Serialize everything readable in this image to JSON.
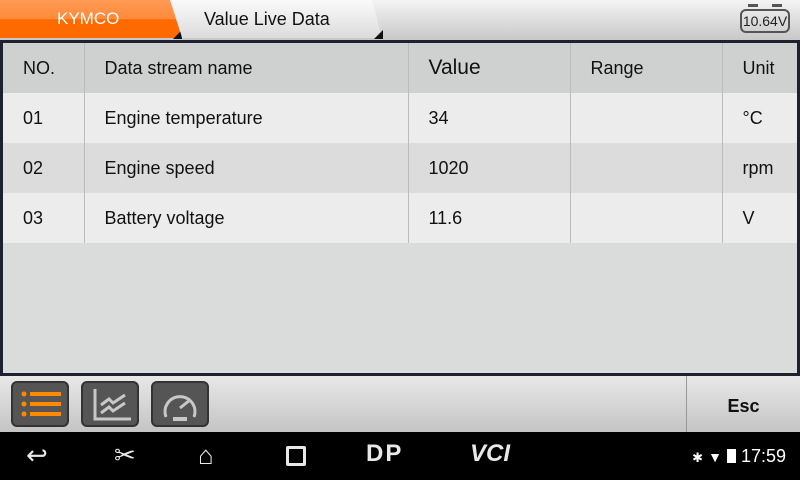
{
  "header": {
    "brand": "KYMCO",
    "breadcrumb": "Value Live Data",
    "battery_voltage": "10.64V",
    "brand_color": "#ff6a00"
  },
  "table": {
    "columns": [
      "NO.",
      "Data stream name",
      "Value",
      "Range",
      "Unit"
    ],
    "rows": [
      [
        "01",
        "Engine temperature",
        "34",
        "",
        "°C"
      ],
      [
        "02",
        "Engine speed",
        "1020",
        "",
        "rpm"
      ],
      [
        "03",
        "Battery voltage",
        "11.6",
        "",
        "V"
      ]
    ]
  },
  "toolbar": {
    "buttons": [
      "list-icon",
      "graph-icon",
      "gauge-icon"
    ],
    "esc_label": "Esc"
  },
  "navbar": {
    "dp_label": "DP",
    "vci_label": "VCI",
    "time": "17:59"
  }
}
